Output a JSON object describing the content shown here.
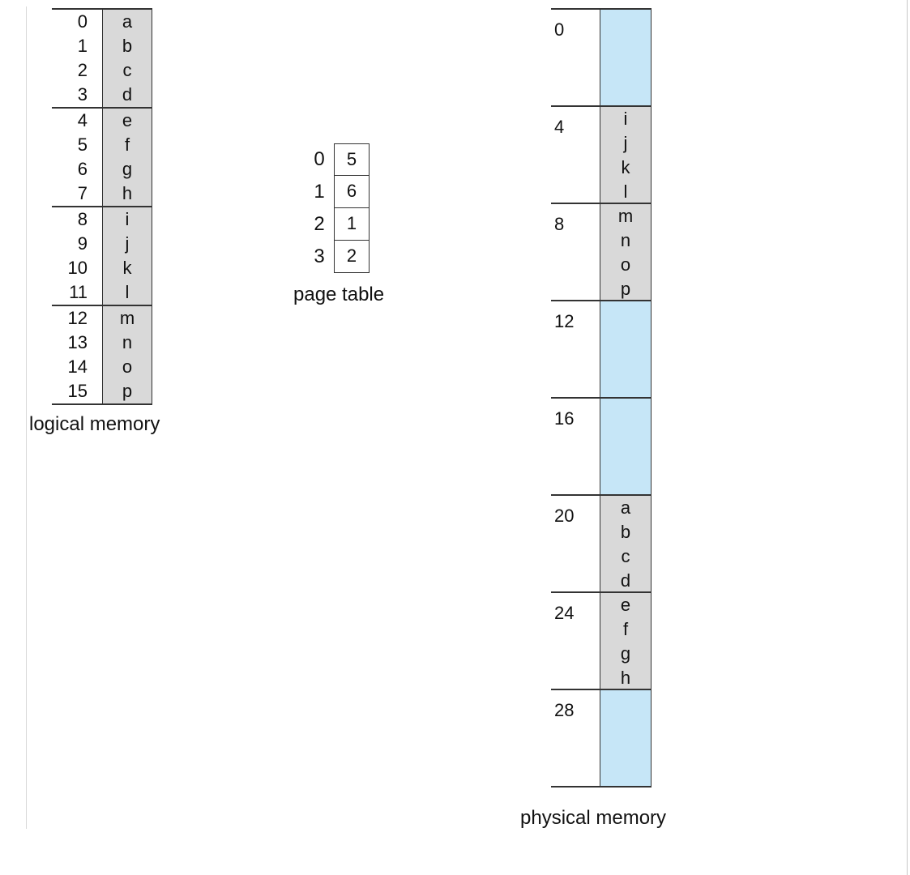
{
  "logical_memory": {
    "caption": "logical memory",
    "rows": [
      {
        "address": "0",
        "content": "a"
      },
      {
        "address": "1",
        "content": "b"
      },
      {
        "address": "2",
        "content": "c"
      },
      {
        "address": "3",
        "content": "d"
      },
      {
        "address": "4",
        "content": "e"
      },
      {
        "address": "5",
        "content": "f"
      },
      {
        "address": "6",
        "content": "g"
      },
      {
        "address": "7",
        "content": "h"
      },
      {
        "address": "8",
        "content": "i"
      },
      {
        "address": "9",
        "content": "j"
      },
      {
        "address": "10",
        "content": "k"
      },
      {
        "address": "11",
        "content": "l"
      },
      {
        "address": "12",
        "content": "m"
      },
      {
        "address": "13",
        "content": "n"
      },
      {
        "address": "14",
        "content": "o"
      },
      {
        "address": "15",
        "content": "p"
      }
    ]
  },
  "page_table": {
    "caption": "page table",
    "entries": [
      {
        "page": "0",
        "frame": "5"
      },
      {
        "page": "1",
        "frame": "6"
      },
      {
        "page": "2",
        "frame": "1"
      },
      {
        "page": "3",
        "frame": "2"
      }
    ]
  },
  "physical_memory": {
    "caption": "physical memory",
    "frames": [
      {
        "address": "0",
        "contents": []
      },
      {
        "address": "4",
        "contents": [
          "i",
          "j",
          "k",
          "l"
        ]
      },
      {
        "address": "8",
        "contents": [
          "m",
          "n",
          "o",
          "p"
        ]
      },
      {
        "address": "12",
        "contents": []
      },
      {
        "address": "16",
        "contents": []
      },
      {
        "address": "20",
        "contents": [
          "a",
          "b",
          "c",
          "d"
        ]
      },
      {
        "address": "24",
        "contents": [
          "e",
          "f",
          "g",
          "h"
        ]
      },
      {
        "address": "28",
        "contents": []
      }
    ]
  },
  "colors": {
    "used": "#d9d9d9",
    "free": "#c6e6f7",
    "line": "#333333"
  }
}
